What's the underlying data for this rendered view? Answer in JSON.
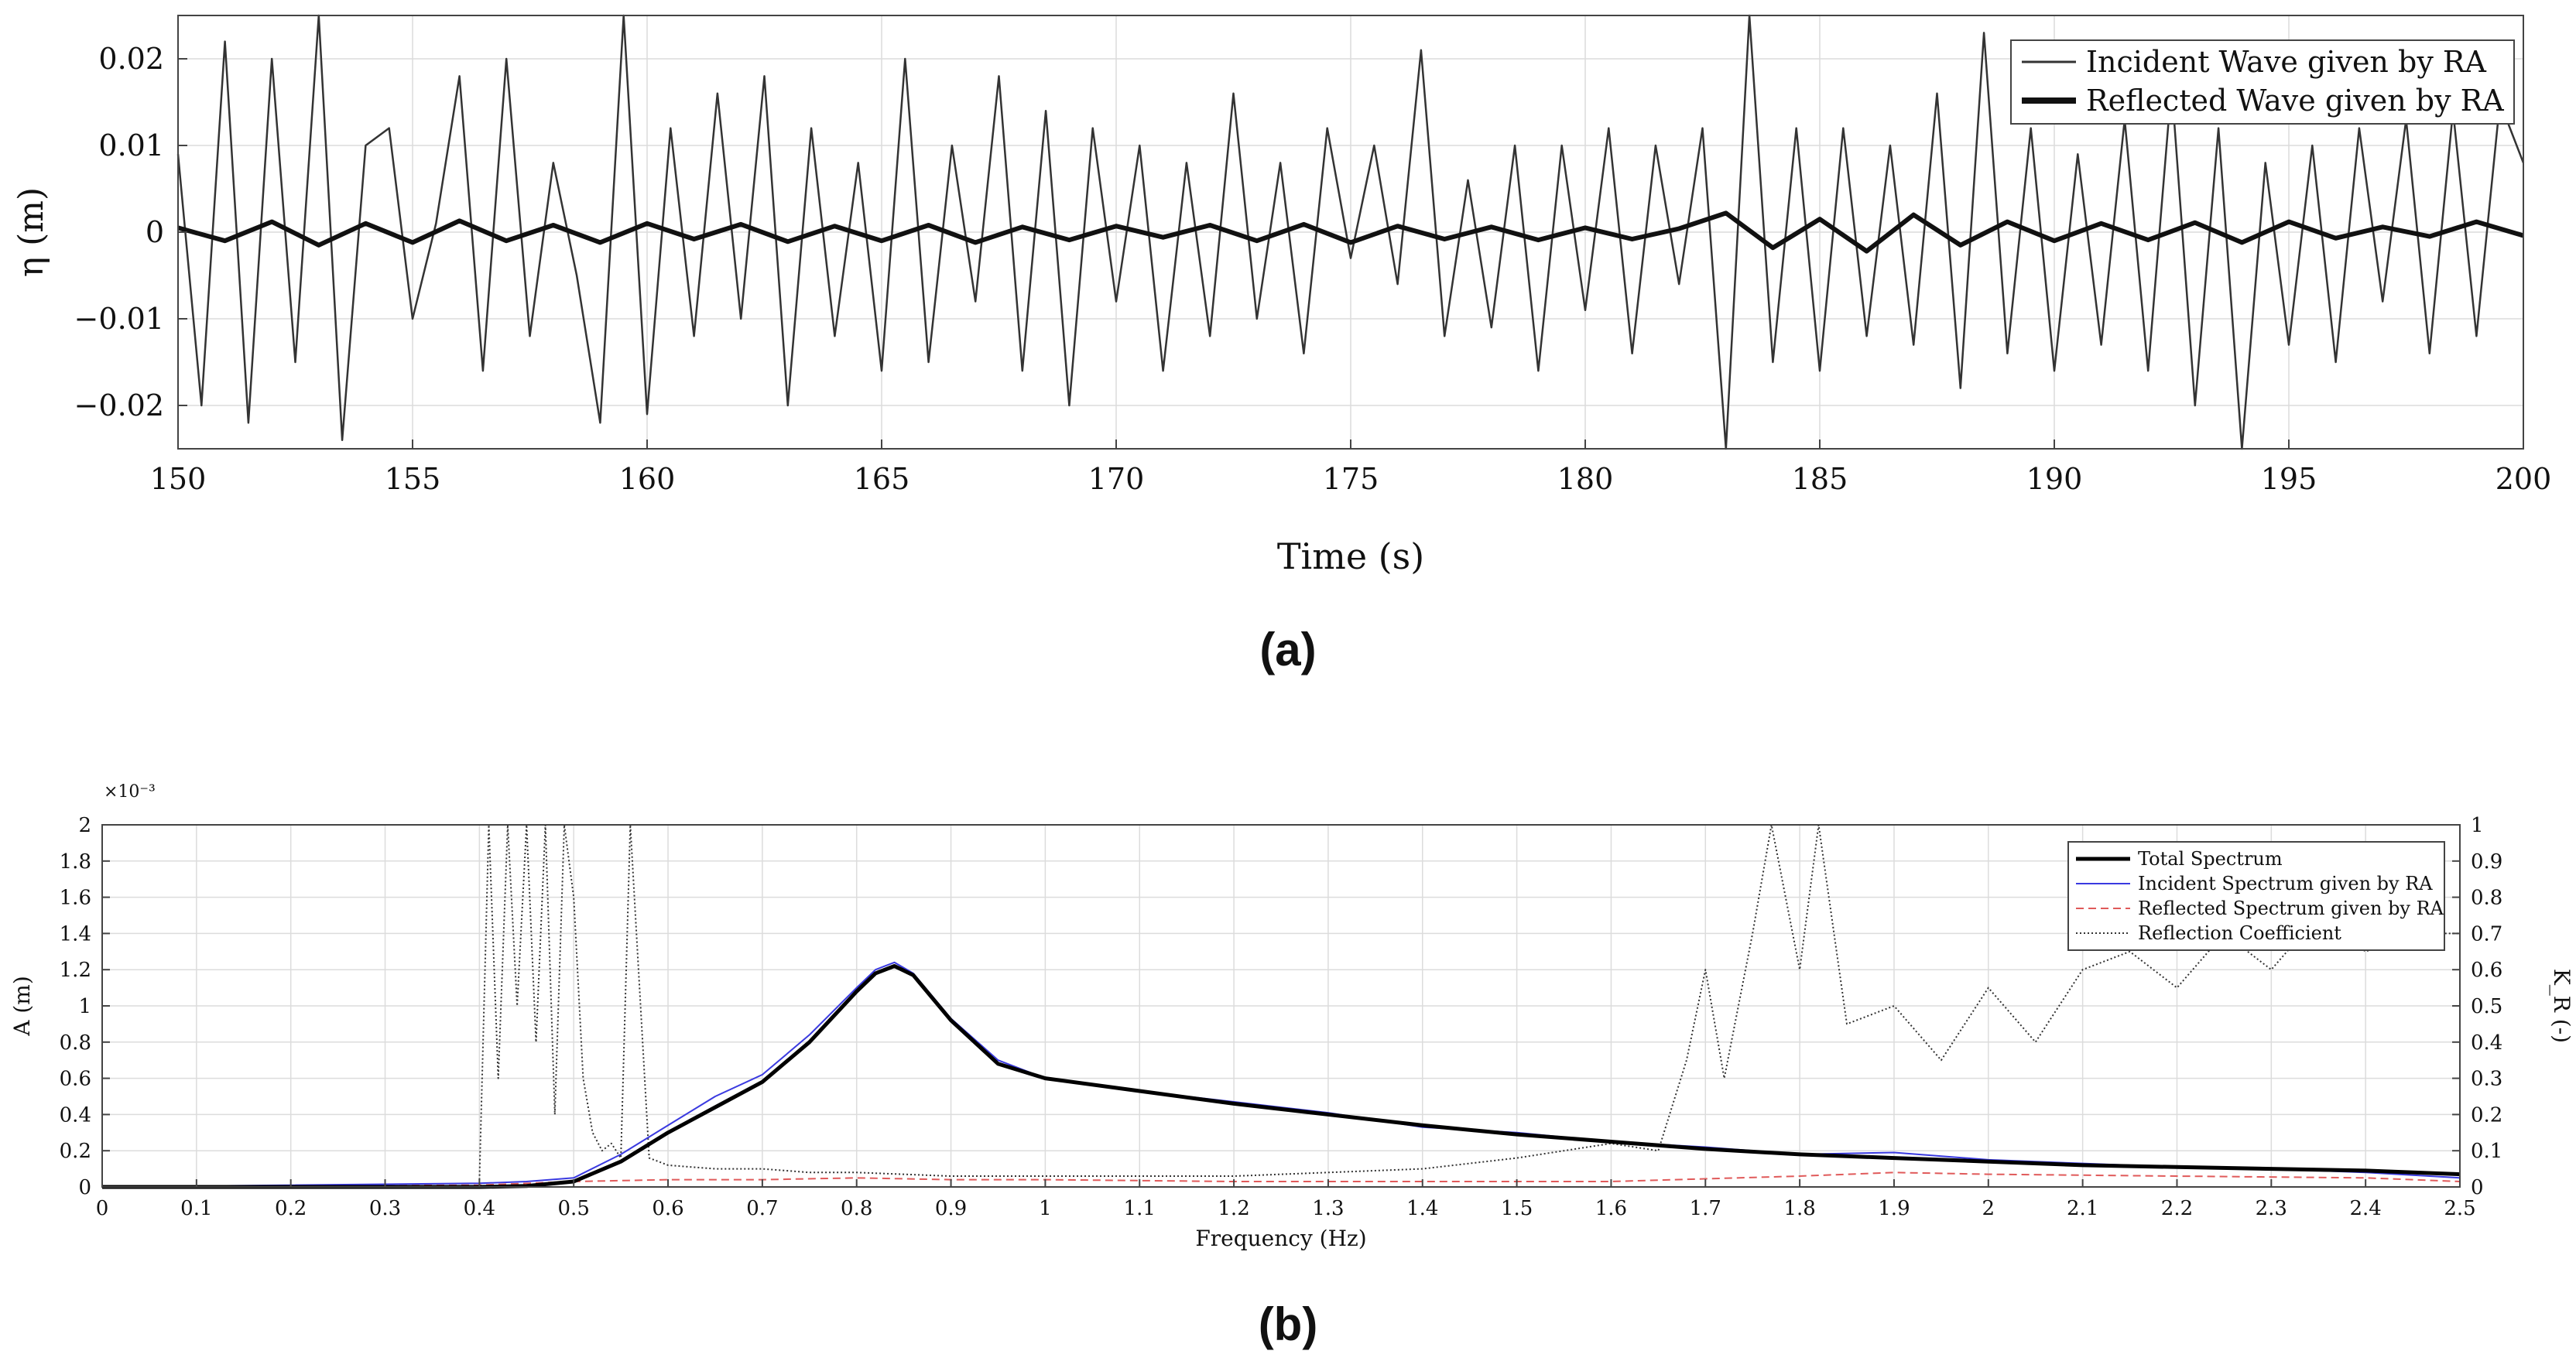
{
  "panels": {
    "a_label": "(a)",
    "b_label": "(b)"
  },
  "chart_data": [
    {
      "id": "a",
      "type": "line",
      "xlabel": "Time (s)",
      "ylabel": "η (m)",
      "xlim": [
        150,
        200
      ],
      "ylim": [
        -0.025,
        0.025
      ],
      "xticks": [
        150,
        155,
        160,
        165,
        170,
        175,
        180,
        185,
        190,
        195,
        200
      ],
      "yticks": [
        -0.02,
        -0.01,
        0,
        0.01,
        0.02
      ],
      "ytick_labels": [
        "−0.02",
        "−0.01",
        "0",
        "0.01",
        "0.02"
      ],
      "grid": true,
      "legend": "top-right",
      "series": [
        {
          "name": "Incident Wave given by RA",
          "color": "#333333",
          "style": "thin",
          "x": [
            150,
            150.5,
            151,
            151.5,
            152,
            152.5,
            153,
            153.5,
            154,
            154.5,
            155,
            155.5,
            156,
            156.5,
            157,
            157.5,
            158,
            158.5,
            159,
            159.5,
            160,
            160.5,
            161,
            161.5,
            162,
            162.5,
            163,
            163.5,
            164,
            164.5,
            165,
            165.5,
            166,
            166.5,
            167,
            167.5,
            168,
            168.5,
            169,
            169.5,
            170,
            170.5,
            171,
            171.5,
            172,
            172.5,
            173,
            173.5,
            174,
            174.5,
            175,
            175.5,
            176,
            176.5,
            177,
            177.5,
            178,
            178.5,
            179,
            179.5,
            180,
            180.5,
            181,
            181.5,
            182,
            182.5,
            183,
            183.5,
            184,
            184.5,
            185,
            185.5,
            186,
            186.5,
            187,
            187.5,
            188,
            188.5,
            189,
            189.5,
            190,
            190.5,
            191,
            191.5,
            192,
            192.5,
            193,
            193.5,
            194,
            194.5,
            195,
            195.5,
            196,
            196.5,
            197,
            197.5,
            198,
            198.5,
            199,
            199.5,
            200
          ],
          "y": [
            0.009,
            -0.02,
            0.022,
            -0.022,
            0.02,
            -0.015,
            0.025,
            -0.024,
            0.01,
            0.012,
            -0.01,
            0.001,
            0.018,
            -0.016,
            0.02,
            -0.012,
            0.008,
            -0.005,
            -0.022,
            0.025,
            -0.021,
            0.012,
            -0.012,
            0.016,
            -0.01,
            0.018,
            -0.02,
            0.012,
            -0.012,
            0.008,
            -0.016,
            0.02,
            -0.015,
            0.01,
            -0.008,
            0.018,
            -0.016,
            0.014,
            -0.02,
            0.012,
            -0.008,
            0.01,
            -0.016,
            0.008,
            -0.012,
            0.016,
            -0.01,
            0.008,
            -0.014,
            0.012,
            -0.003,
            0.01,
            -0.006,
            0.021,
            -0.012,
            0.006,
            -0.011,
            0.01,
            -0.016,
            0.01,
            -0.009,
            0.012,
            -0.014,
            0.01,
            -0.006,
            0.012,
            -0.025,
            0.025,
            -0.015,
            0.012,
            -0.016,
            0.012,
            -0.012,
            0.01,
            -0.013,
            0.016,
            -0.018,
            0.023,
            -0.014,
            0.012,
            -0.016,
            0.009,
            -0.013,
            0.013,
            -0.016,
            0.017,
            -0.02,
            0.012,
            -0.025,
            0.008,
            -0.013,
            0.01,
            -0.015,
            0.012,
            -0.008,
            0.013,
            -0.014,
            0.014,
            -0.012,
            0.015,
            0.008
          ]
        },
        {
          "name": "Reflected Wave given by RA",
          "color": "#111111",
          "style": "thick",
          "x": [
            150,
            151,
            152,
            153,
            154,
            155,
            156,
            157,
            158,
            159,
            160,
            161,
            162,
            163,
            164,
            165,
            166,
            167,
            168,
            169,
            170,
            171,
            172,
            173,
            174,
            175,
            176,
            177,
            178,
            179,
            180,
            181,
            182,
            183,
            184,
            185,
            186,
            187,
            188,
            189,
            190,
            191,
            192,
            193,
            194,
            195,
            196,
            197,
            198,
            199,
            200
          ],
          "y": [
            0.0005,
            -0.001,
            0.0012,
            -0.0015,
            0.001,
            -0.0012,
            0.0013,
            -0.001,
            0.0008,
            -0.0012,
            0.001,
            -0.0008,
            0.0009,
            -0.0011,
            0.0007,
            -0.001,
            0.0008,
            -0.0012,
            0.0006,
            -0.0009,
            0.0007,
            -0.0006,
            0.0008,
            -0.001,
            0.0009,
            -0.0012,
            0.0007,
            -0.0008,
            0.0006,
            -0.0009,
            0.0005,
            -0.0008,
            0.0004,
            0.0022,
            -0.0018,
            0.0015,
            -0.0022,
            0.002,
            -0.0015,
            0.0012,
            -0.001,
            0.001,
            -0.0009,
            0.0011,
            -0.0012,
            0.0012,
            -0.0007,
            0.0006,
            -0.0005,
            0.0012,
            -0.0004
          ]
        }
      ]
    },
    {
      "id": "b",
      "type": "line",
      "xlabel": "Frequency (Hz)",
      "ylabel": "A (m)",
      "ylabel_right": "K_R (-)",
      "y_multiplier": "×10⁻³",
      "xlim": [
        0,
        2.5
      ],
      "ylim": [
        0,
        2
      ],
      "ylim_right": [
        0,
        1
      ],
      "xticks": [
        0,
        0.1,
        0.2,
        0.3,
        0.4,
        0.5,
        0.6,
        0.7,
        0.8,
        0.9,
        1,
        1.1,
        1.2,
        1.3,
        1.4,
        1.5,
        1.6,
        1.7,
        1.8,
        1.9,
        2,
        2.1,
        2.2,
        2.3,
        2.4,
        2.5
      ],
      "yticks": [
        0,
        0.2,
        0.4,
        0.6,
        0.8,
        1,
        1.2,
        1.4,
        1.6,
        1.8,
        2
      ],
      "yticks_right": [
        0,
        0.1,
        0.2,
        0.3,
        0.4,
        0.5,
        0.6,
        0.7,
        0.8,
        0.9,
        1
      ],
      "grid": true,
      "legend": "top-right",
      "series": [
        {
          "name": "Total Spectrum",
          "color": "#000000",
          "axis": "left",
          "x": [
            0,
            0.4,
            0.45,
            0.5,
            0.55,
            0.6,
            0.65,
            0.7,
            0.75,
            0.8,
            0.82,
            0.84,
            0.86,
            0.9,
            0.95,
            1,
            1.1,
            1.2,
            1.3,
            1.4,
            1.5,
            1.6,
            1.7,
            1.8,
            1.9,
            2,
            2.1,
            2.2,
            2.3,
            2.4,
            2.5
          ],
          "y": [
            0,
            0,
            0.005,
            0.03,
            0.14,
            0.3,
            0.44,
            0.58,
            0.8,
            1.08,
            1.18,
            1.22,
            1.17,
            0.92,
            0.68,
            0.6,
            0.53,
            0.46,
            0.4,
            0.34,
            0.29,
            0.25,
            0.21,
            0.18,
            0.16,
            0.14,
            0.12,
            0.11,
            0.1,
            0.09,
            0.07
          ]
        },
        {
          "name": "Incident Spectrum given by RA",
          "color": "#3a3ae0",
          "axis": "left",
          "x": [
            0,
            0.4,
            0.45,
            0.5,
            0.55,
            0.6,
            0.65,
            0.7,
            0.75,
            0.8,
            0.82,
            0.84,
            0.86,
            0.9,
            0.95,
            1,
            1.1,
            1.2,
            1.3,
            1.4,
            1.5,
            1.6,
            1.7,
            1.8,
            1.9,
            2,
            2.1,
            2.2,
            2.3,
            2.4,
            2.5
          ],
          "y": [
            0,
            0.02,
            0.03,
            0.05,
            0.18,
            0.34,
            0.5,
            0.62,
            0.84,
            1.1,
            1.2,
            1.24,
            1.18,
            0.93,
            0.7,
            0.6,
            0.53,
            0.47,
            0.41,
            0.33,
            0.3,
            0.25,
            0.22,
            0.18,
            0.19,
            0.15,
            0.13,
            0.11,
            0.1,
            0.08,
            0.05
          ]
        },
        {
          "name": "Reflected Spectrum given by RA",
          "color": "#e05a5a",
          "axis": "left",
          "x": [
            0,
            0.4,
            0.5,
            0.6,
            0.7,
            0.8,
            0.9,
            1,
            1.2,
            1.4,
            1.6,
            1.8,
            1.9,
            2,
            2.2,
            2.4,
            2.5
          ],
          "y": [
            0,
            0.01,
            0.03,
            0.04,
            0.04,
            0.05,
            0.04,
            0.04,
            0.03,
            0.03,
            0.03,
            0.06,
            0.08,
            0.07,
            0.06,
            0.05,
            0.03
          ]
        },
        {
          "name": "Reflection Coefficient",
          "color": "#333333",
          "axis": "right",
          "x": [
            0.4,
            0.41,
            0.42,
            0.43,
            0.44,
            0.45,
            0.46,
            0.47,
            0.48,
            0.49,
            0.5,
            0.51,
            0.52,
            0.53,
            0.54,
            0.55,
            0.56,
            0.58,
            0.6,
            0.65,
            0.7,
            0.75,
            0.8,
            0.9,
            1,
            1.2,
            1.4,
            1.5,
            1.6,
            1.65,
            1.68,
            1.7,
            1.72,
            1.75,
            1.77,
            1.8,
            1.82,
            1.85,
            1.9,
            1.95,
            2,
            2.05,
            2.1,
            2.15,
            2.2,
            2.25,
            2.3,
            2.35,
            2.4,
            2.45,
            2.5
          ],
          "y": [
            0.02,
            1,
            0.3,
            1,
            0.5,
            1,
            0.4,
            1,
            0.2,
            1,
            0.8,
            0.3,
            0.15,
            0.1,
            0.12,
            0.08,
            1,
            0.08,
            0.06,
            0.05,
            0.05,
            0.04,
            0.04,
            0.03,
            0.03,
            0.03,
            0.05,
            0.08,
            0.12,
            0.1,
            0.35,
            0.6,
            0.3,
            0.7,
            1,
            0.6,
            1,
            0.45,
            0.5,
            0.35,
            0.55,
            0.4,
            0.6,
            0.65,
            0.55,
            0.7,
            0.6,
            0.75,
            0.65,
            0.7,
            0.7
          ]
        }
      ]
    }
  ]
}
